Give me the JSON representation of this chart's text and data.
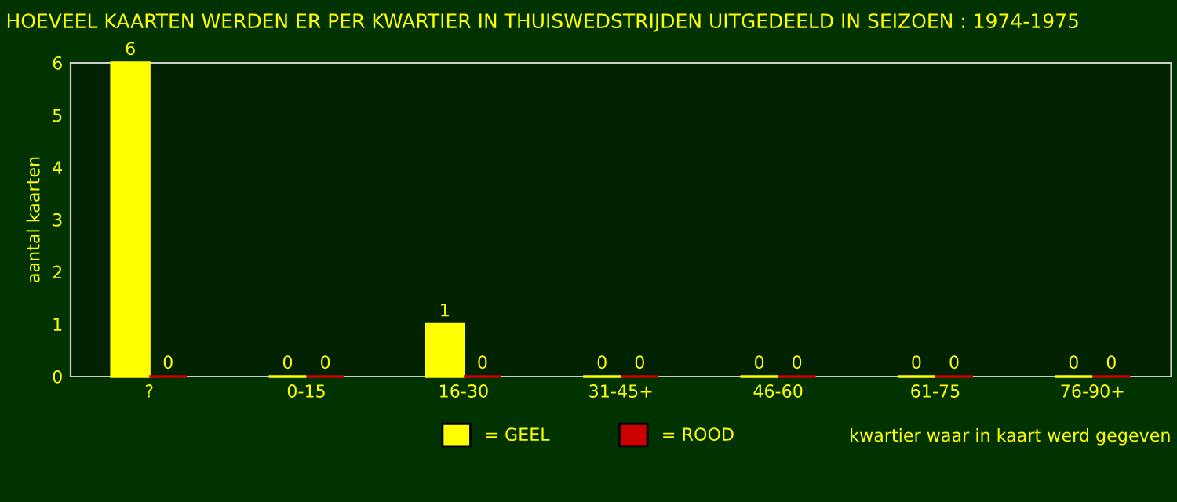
{
  "chart_data": {
    "type": "bar",
    "title": "HOEVEEL KAARTEN WERDEN ER PER KWARTIER IN THUISWEDSTRIJDEN UITGEDEELD IN SEIZOEN : 1974-1975",
    "xlabel": "kwartier waar in kaart werd gegeven",
    "ylabel": "aantal kaarten",
    "categories": [
      "?",
      "0-15",
      "16-30",
      "31-45+",
      "46-60",
      "61-75",
      "76-90+"
    ],
    "series": [
      {
        "name": "= GEEL",
        "color": "#ffff00",
        "values": [
          6,
          0,
          1,
          0,
          0,
          0,
          0
        ]
      },
      {
        "name": "= ROOD",
        "color": "#cc0000",
        "values": [
          0,
          0,
          0,
          0,
          0,
          0,
          0
        ]
      }
    ],
    "ylim": [
      0,
      6
    ],
    "yticks": [
      0,
      1,
      2,
      3,
      4,
      5,
      6
    ],
    "grid": false,
    "legend": "bottom",
    "data_labels": true
  }
}
